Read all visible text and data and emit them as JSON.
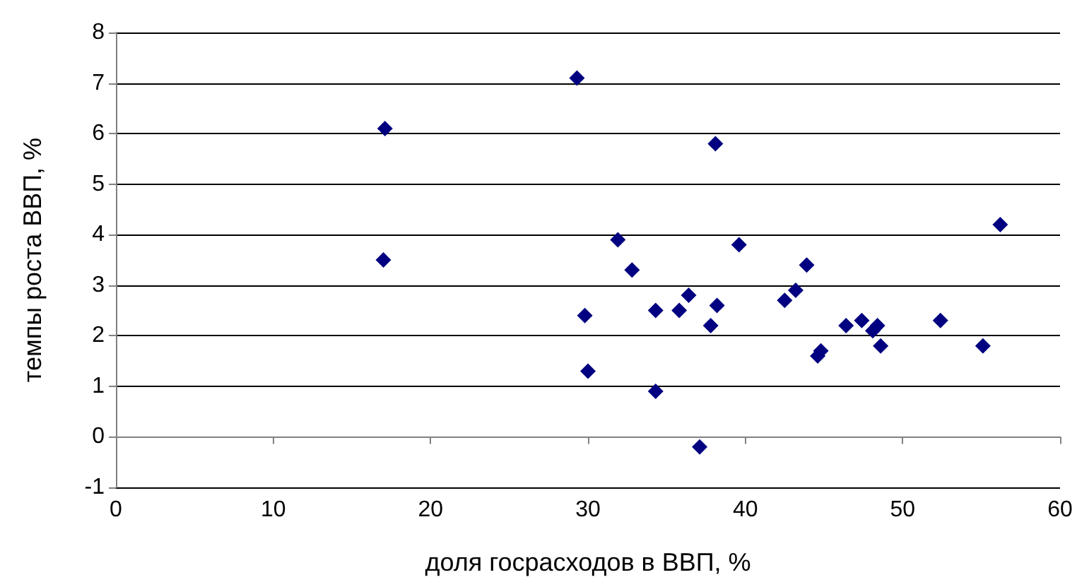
{
  "chart_data": {
    "type": "scatter",
    "xlabel": "доля госрасходов в ВВП, %",
    "ylabel": "темпы роста ВВП, %",
    "x": [
      29.3,
      17.1,
      17.0,
      29.8,
      30.0,
      31.9,
      32.8,
      34.3,
      34.3,
      35.8,
      36.4,
      37.1,
      37.8,
      38.1,
      38.2,
      39.6,
      42.5,
      43.2,
      43.9,
      44.6,
      44.8,
      46.4,
      47.4,
      48.1,
      48.4,
      48.6,
      52.4,
      55.1,
      56.2
    ],
    "values": [
      7.1,
      6.1,
      3.5,
      2.4,
      1.3,
      3.9,
      3.3,
      2.5,
      0.9,
      2.5,
      2.8,
      -0.2,
      2.2,
      5.8,
      2.6,
      3.8,
      2.7,
      2.9,
      3.4,
      1.6,
      1.7,
      2.2,
      2.3,
      2.1,
      2.2,
      1.8,
      2.3,
      1.8,
      4.2
    ],
    "color": "#000080",
    "marker": "diamond",
    "xlim": [
      0,
      60
    ],
    "xticks": [
      0,
      10,
      20,
      30,
      40,
      50,
      60
    ],
    "ylim": [
      -1,
      8
    ],
    "yticks": [
      -1,
      0,
      1,
      2,
      3,
      4,
      5,
      6,
      7,
      8
    ],
    "grid": "y"
  }
}
